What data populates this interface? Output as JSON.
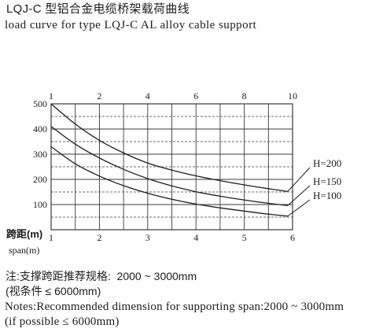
{
  "chart_data": {
    "type": "line",
    "title": "LQJ-C 型铝合金电缆桥架载荷曲线",
    "subtitle": "load curve for type LQJ-C AL alloy cable support",
    "xlabel": "跨距(m)",
    "xlabel_en": "span(m)",
    "xlim": [
      1,
      6
    ],
    "ylim": [
      0,
      500
    ],
    "x_ticks": [
      1,
      2,
      3,
      4,
      5,
      6
    ],
    "top_axis_ticks": [
      1,
      2,
      4,
      6,
      8,
      10
    ],
    "top_axis_at_x": [
      1,
      2,
      3,
      4,
      5,
      6
    ],
    "y_ticks": [
      100,
      200,
      300,
      400,
      500
    ],
    "grid": true,
    "legend": "right",
    "x": [
      1,
      1.5,
      2,
      2.5,
      3,
      3.5,
      4,
      4.5,
      5,
      5.5,
      5.9
    ],
    "series": [
      {
        "name": "H=200",
        "values": [
          500,
          420,
          355,
          305,
          265,
          237,
          214,
          195,
          178,
          163,
          152
        ]
      },
      {
        "name": "H=150",
        "values": [
          410,
          340,
          285,
          240,
          203,
          174,
          151,
          133,
          118,
          105,
          96
        ]
      },
      {
        "name": "H=100",
        "values": [
          330,
          262,
          213,
          175,
          145,
          121,
          102,
          87,
          74,
          62,
          54
        ]
      }
    ]
  },
  "notes": {
    "zh_line_1": "注:支撑跨距推荐规格:  2000 ~ 3000mm",
    "zh_line_2": "(视条件 ≤ 6000mm)",
    "en_line_1": "Notes:Recommended dimension for supporting span:2000 ~ 3000mm",
    "en_line_2": "(if possible ≤ 6000mm)"
  },
  "colors": {
    "text": "#1c1c1c",
    "grid": "#3a3a3a",
    "curve": "#1e1e1e",
    "background": "#ffffff"
  }
}
